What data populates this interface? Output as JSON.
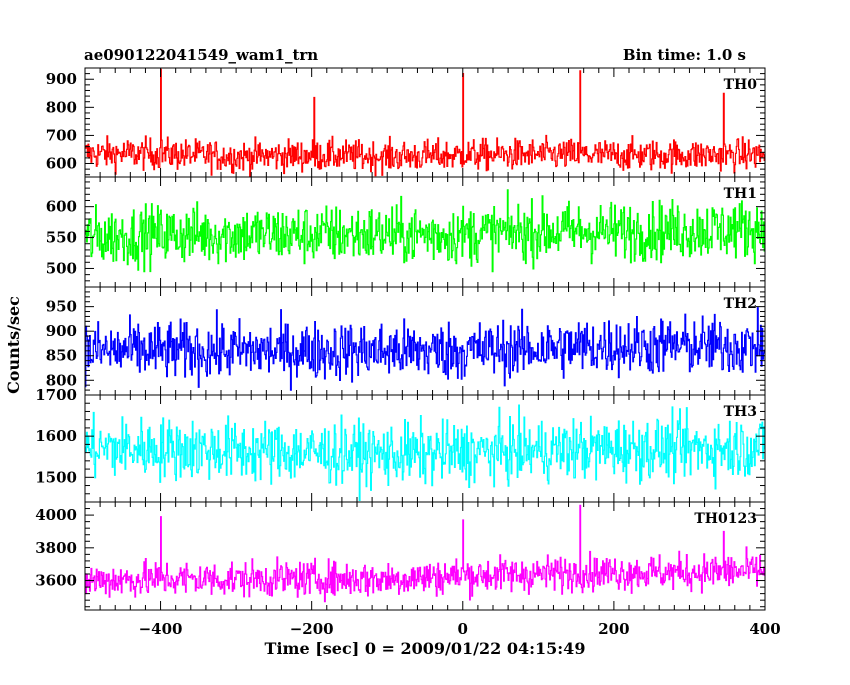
{
  "header": {
    "left": "ae090122041549_wam1_trn",
    "right": "Bin time: 1.0 s"
  },
  "chart_data": {
    "type": "line",
    "title": "ae090122041549_wam1_trn",
    "subtitle": "Bin time: 1.0 s",
    "xlabel": "Time [sec] 0 = 2009/01/22 04:15:49",
    "ylabel": "Counts/sec",
    "xlim": [
      -500,
      400
    ],
    "x_ticks": [
      -400,
      -200,
      0,
      200,
      400
    ],
    "x_tick_labels": [
      "−400",
      "−200",
      "0",
      "200",
      "400"
    ],
    "series": [
      {
        "name": "TH0",
        "color": "#ff0000",
        "ylim": [
          552,
          940
        ],
        "y_ticks": [
          600,
          700,
          800,
          900
        ],
        "baseline": 622,
        "noise": 28,
        "samples": [
          [
            -499.5,
            635
          ],
          [
            -400,
            635
          ],
          [
            -300,
            625
          ],
          [
            -200,
            630
          ],
          [
            -100,
            625
          ],
          [
            0,
            630
          ],
          [
            100,
            632
          ],
          [
            200,
            630
          ],
          [
            300,
            630
          ],
          [
            399.5,
            632
          ]
        ],
        "spikes": [
          [
            -400,
            935
          ],
          [
            -197,
            835
          ],
          [
            0,
            920
          ],
          [
            155,
            930
          ],
          [
            345,
            850
          ]
        ]
      },
      {
        "name": "TH1",
        "color": "#00ff00",
        "ylim": [
          470,
          648
        ],
        "y_ticks": [
          500,
          550,
          600
        ],
        "baseline": 555,
        "noise": 24,
        "samples": [
          [
            -499.5,
            550
          ],
          [
            -400,
            555
          ],
          [
            -300,
            555
          ],
          [
            -200,
            555
          ],
          [
            -100,
            555
          ],
          [
            0,
            555
          ],
          [
            100,
            560
          ],
          [
            200,
            560
          ],
          [
            300,
            562
          ],
          [
            399.5,
            565
          ]
        ],
        "spikes": []
      },
      {
        "name": "TH2",
        "color": "#0000ff",
        "ylim": [
          770,
          990
        ],
        "y_ticks": [
          800,
          850,
          900,
          950
        ],
        "baseline": 860,
        "noise": 30,
        "samples": [
          [
            -499.5,
            860
          ],
          [
            -400,
            860
          ],
          [
            -300,
            860
          ],
          [
            -200,
            860
          ],
          [
            -100,
            860
          ],
          [
            0,
            860
          ],
          [
            100,
            865
          ],
          [
            200,
            870
          ],
          [
            300,
            870
          ],
          [
            399.5,
            870
          ]
        ],
        "spikes": []
      },
      {
        "name": "TH3",
        "color": "#00ffff",
        "ylim": [
          1440,
          1700
        ],
        "y_ticks": [
          1500,
          1600,
          1700
        ],
        "baseline": 1565,
        "noise": 38,
        "samples": [
          [
            -499.5,
            1570
          ],
          [
            -400,
            1570
          ],
          [
            -300,
            1565
          ],
          [
            -200,
            1560
          ],
          [
            -100,
            1555
          ],
          [
            0,
            1560
          ],
          [
            100,
            1565
          ],
          [
            200,
            1570
          ],
          [
            300,
            1570
          ],
          [
            399.5,
            1575
          ]
        ],
        "spikes": []
      },
      {
        "name": "TH0123",
        "color": "#ff00ff",
        "ylim": [
          3420,
          4080
        ],
        "y_ticks": [
          3600,
          3800,
          4000
        ],
        "baseline": 3620,
        "noise": 55,
        "samples": [
          [
            -499.5,
            3600
          ],
          [
            -400,
            3610
          ],
          [
            -300,
            3610
          ],
          [
            -200,
            3610
          ],
          [
            -100,
            3610
          ],
          [
            0,
            3630
          ],
          [
            100,
            3640
          ],
          [
            200,
            3650
          ],
          [
            300,
            3650
          ],
          [
            399.5,
            3660
          ]
        ],
        "spikes": [
          [
            -400,
            3990
          ],
          [
            0,
            3970
          ],
          [
            155,
            4060
          ],
          [
            345,
            3900
          ]
        ]
      }
    ]
  }
}
